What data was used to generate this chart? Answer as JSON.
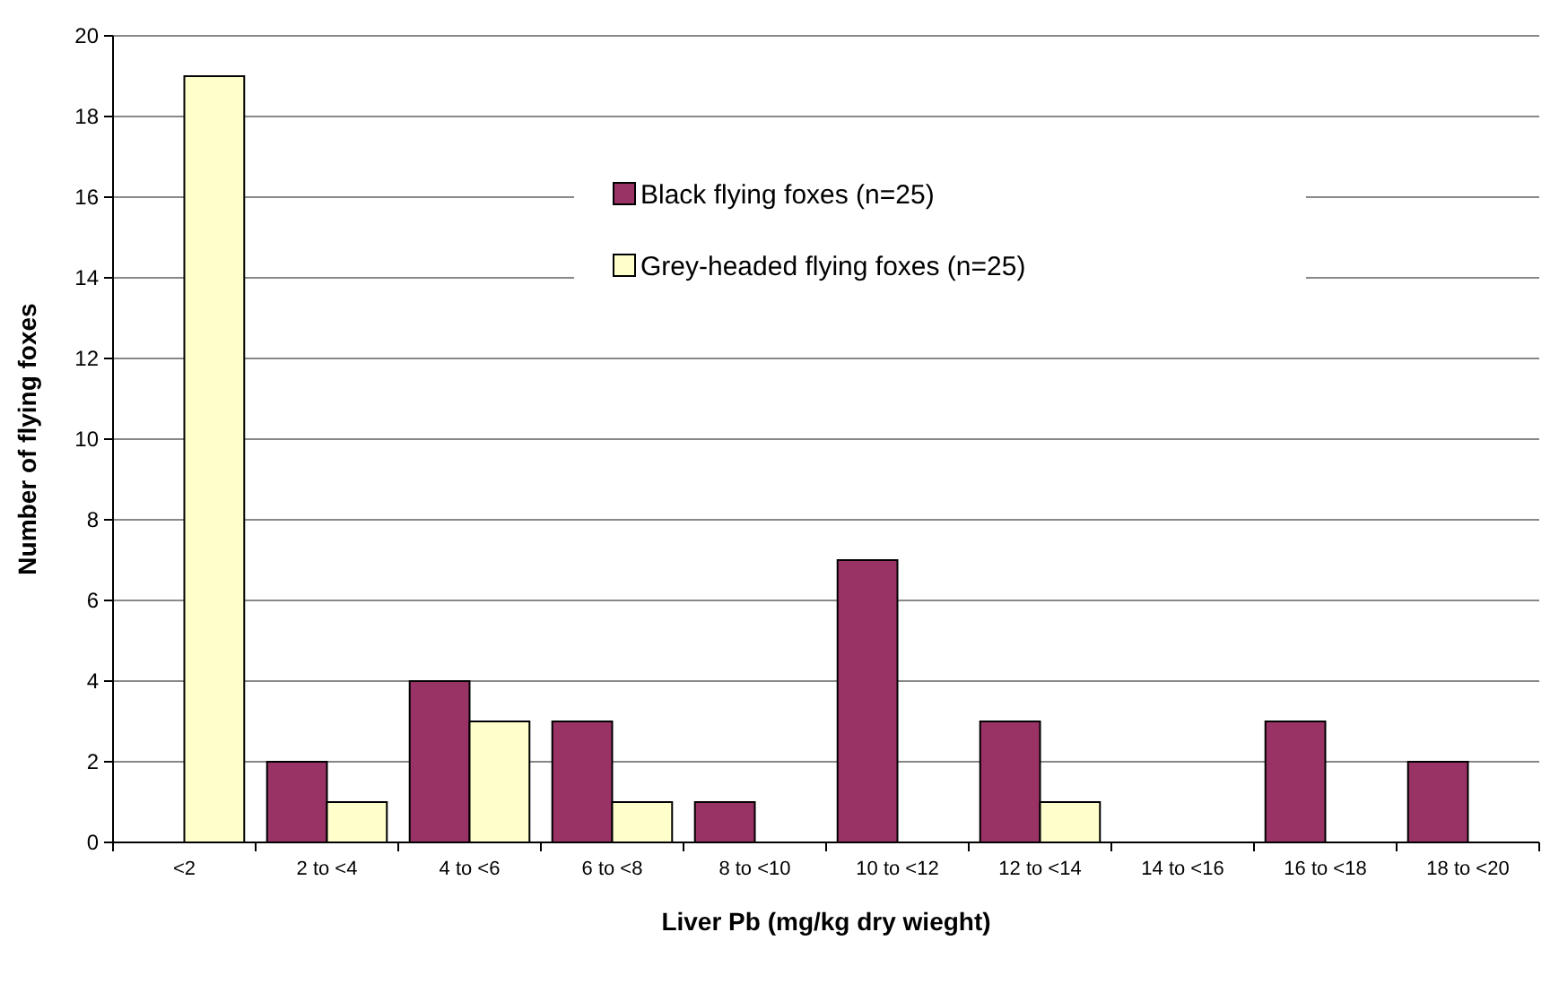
{
  "chart_data": {
    "type": "bar",
    "xlabel": "Liver Pb (mg/kg dry wieght)",
    "ylabel": "Number of flying foxes",
    "categories": [
      "<2",
      "2 to <4",
      "4 to <6",
      "6 to <8",
      "8 to <10",
      "10 to <12",
      "12 to <14",
      "14 to <16",
      "16 to <18",
      "18 to <20"
    ],
    "series": [
      {
        "name": "Black flying foxes (n=25)",
        "color": "#993366",
        "values": [
          0,
          2,
          4,
          3,
          1,
          7,
          3,
          0,
          3,
          2
        ]
      },
      {
        "name": "Grey-headed flying foxes (n=25)",
        "color": "#ffffcc",
        "values": [
          19,
          1,
          3,
          1,
          0,
          0,
          1,
          0,
          0,
          0
        ]
      }
    ],
    "ylim": [
      0,
      20
    ],
    "yticks": [
      0,
      2,
      4,
      6,
      8,
      10,
      12,
      14,
      16,
      18,
      20
    ],
    "grid": "y",
    "legend": "top right"
  }
}
